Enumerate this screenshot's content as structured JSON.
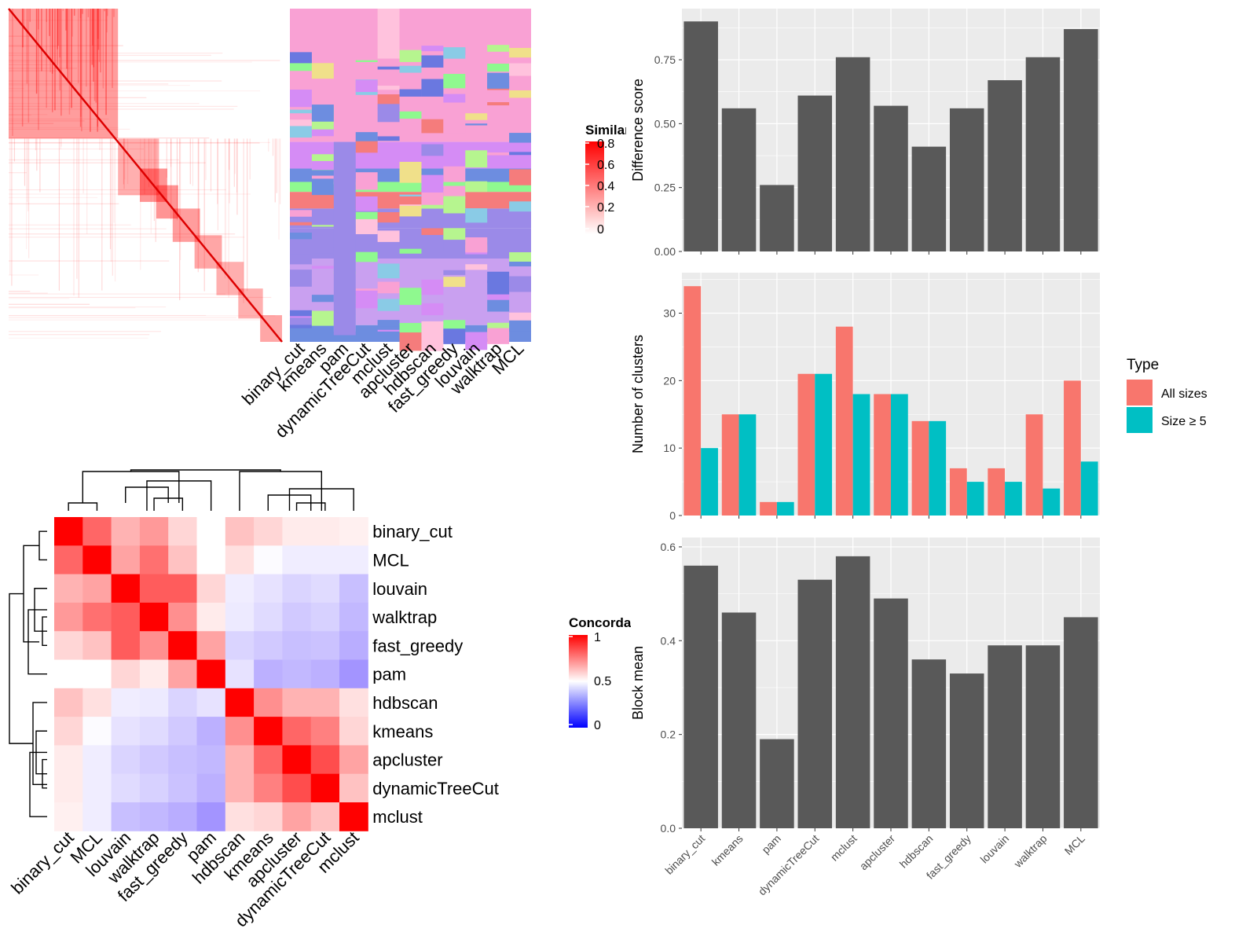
{
  "methods_topleft": [
    "binary_cut",
    "kmeans",
    "pam",
    "dynamicTreeCut",
    "mclust",
    "apcluster",
    "hdbscan",
    "fast_greedy",
    "louvain",
    "walktrap",
    "MCL"
  ],
  "similarity_legend": {
    "title": "Similarity",
    "ticks": [
      "0.8",
      "0.6",
      "0.4",
      "0.2",
      "0"
    ]
  },
  "concordance": {
    "legend": {
      "title": "Concordance",
      "ticks": [
        "1",
        "0.5",
        "0"
      ]
    },
    "order": [
      "binary_cut",
      "MCL",
      "louvain",
      "walktrap",
      "fast_greedy",
      "pam",
      "hdbscan",
      "kmeans",
      "apcluster",
      "dynamicTreeCut",
      "mclust"
    ],
    "matrix": [
      [
        1.0,
        0.8,
        0.65,
        0.7,
        0.58,
        0.5,
        0.62,
        0.58,
        0.54,
        0.54,
        0.53
      ],
      [
        0.8,
        1.0,
        0.68,
        0.78,
        0.62,
        0.5,
        0.56,
        0.49,
        0.45,
        0.45,
        0.45
      ],
      [
        0.65,
        0.68,
        1.0,
        0.82,
        0.82,
        0.58,
        0.45,
        0.42,
        0.38,
        0.4,
        0.32
      ],
      [
        0.7,
        0.78,
        0.82,
        1.0,
        0.72,
        0.54,
        0.44,
        0.4,
        0.35,
        0.37,
        0.3
      ],
      [
        0.58,
        0.62,
        0.82,
        0.72,
        1.0,
        0.68,
        0.38,
        0.35,
        0.32,
        0.33,
        0.27
      ],
      [
        0.5,
        0.5,
        0.58,
        0.54,
        0.68,
        1.0,
        0.42,
        0.28,
        0.3,
        0.28,
        0.2
      ],
      [
        0.62,
        0.56,
        0.45,
        0.44,
        0.38,
        0.42,
        1.0,
        0.72,
        0.65,
        0.65,
        0.56
      ],
      [
        0.58,
        0.49,
        0.42,
        0.4,
        0.35,
        0.28,
        0.72,
        1.0,
        0.8,
        0.75,
        0.58
      ],
      [
        0.54,
        0.45,
        0.38,
        0.35,
        0.32,
        0.3,
        0.65,
        0.8,
        1.0,
        0.85,
        0.68
      ],
      [
        0.54,
        0.45,
        0.4,
        0.37,
        0.33,
        0.28,
        0.65,
        0.75,
        0.85,
        1.0,
        0.62
      ],
      [
        0.53,
        0.45,
        0.32,
        0.3,
        0.27,
        0.2,
        0.56,
        0.58,
        0.68,
        0.62,
        1.0
      ]
    ]
  },
  "chart_data": [
    {
      "type": "bar",
      "categories": [
        "binary_cut",
        "kmeans",
        "pam",
        "dynamicTreeCut",
        "mclust",
        "apcluster",
        "hdbscan",
        "fast_greedy",
        "louvain",
        "walktrap",
        "MCL"
      ],
      "values": [
        0.9,
        0.56,
        0.26,
        0.61,
        0.76,
        0.57,
        0.41,
        0.56,
        0.67,
        0.76,
        0.87
      ],
      "ylabel": "Difference score",
      "yticks": [
        "0.00",
        "0.25",
        "0.50",
        "0.75"
      ],
      "ylim": [
        0,
        0.95
      ],
      "grid": true
    },
    {
      "type": "bar",
      "categories": [
        "binary_cut",
        "kmeans",
        "pam",
        "dynamicTreeCut",
        "mclust",
        "apcluster",
        "hdbscan",
        "fast_greedy",
        "louvain",
        "walktrap",
        "MCL"
      ],
      "series": [
        {
          "name": "All sizes",
          "values": [
            34,
            15,
            2,
            21,
            28,
            18,
            14,
            7,
            7,
            15,
            20
          ],
          "color": "#F8766D"
        },
        {
          "name": "Size ≥ 5",
          "values": [
            10,
            15,
            2,
            21,
            18,
            18,
            14,
            5,
            5,
            4,
            8
          ],
          "color": "#00BFC4"
        }
      ],
      "ylabel": "Number of clusters",
      "yticks": [
        "0",
        "10",
        "20",
        "30"
      ],
      "ylim": [
        0,
        36
      ],
      "legend_title": "Type",
      "legend_position": "right",
      "grid": true
    },
    {
      "type": "bar",
      "categories": [
        "binary_cut",
        "kmeans",
        "pam",
        "dynamicTreeCut",
        "mclust",
        "apcluster",
        "hdbscan",
        "fast_greedy",
        "louvain",
        "walktrap",
        "MCL"
      ],
      "values": [
        0.56,
        0.46,
        0.19,
        0.53,
        0.58,
        0.49,
        0.36,
        0.33,
        0.39,
        0.39,
        0.45
      ],
      "ylabel": "Block mean",
      "yticks": [
        "0.0",
        "0.2",
        "0.4",
        "0.6"
      ],
      "ylim": [
        0,
        0.62
      ],
      "grid": true
    }
  ]
}
